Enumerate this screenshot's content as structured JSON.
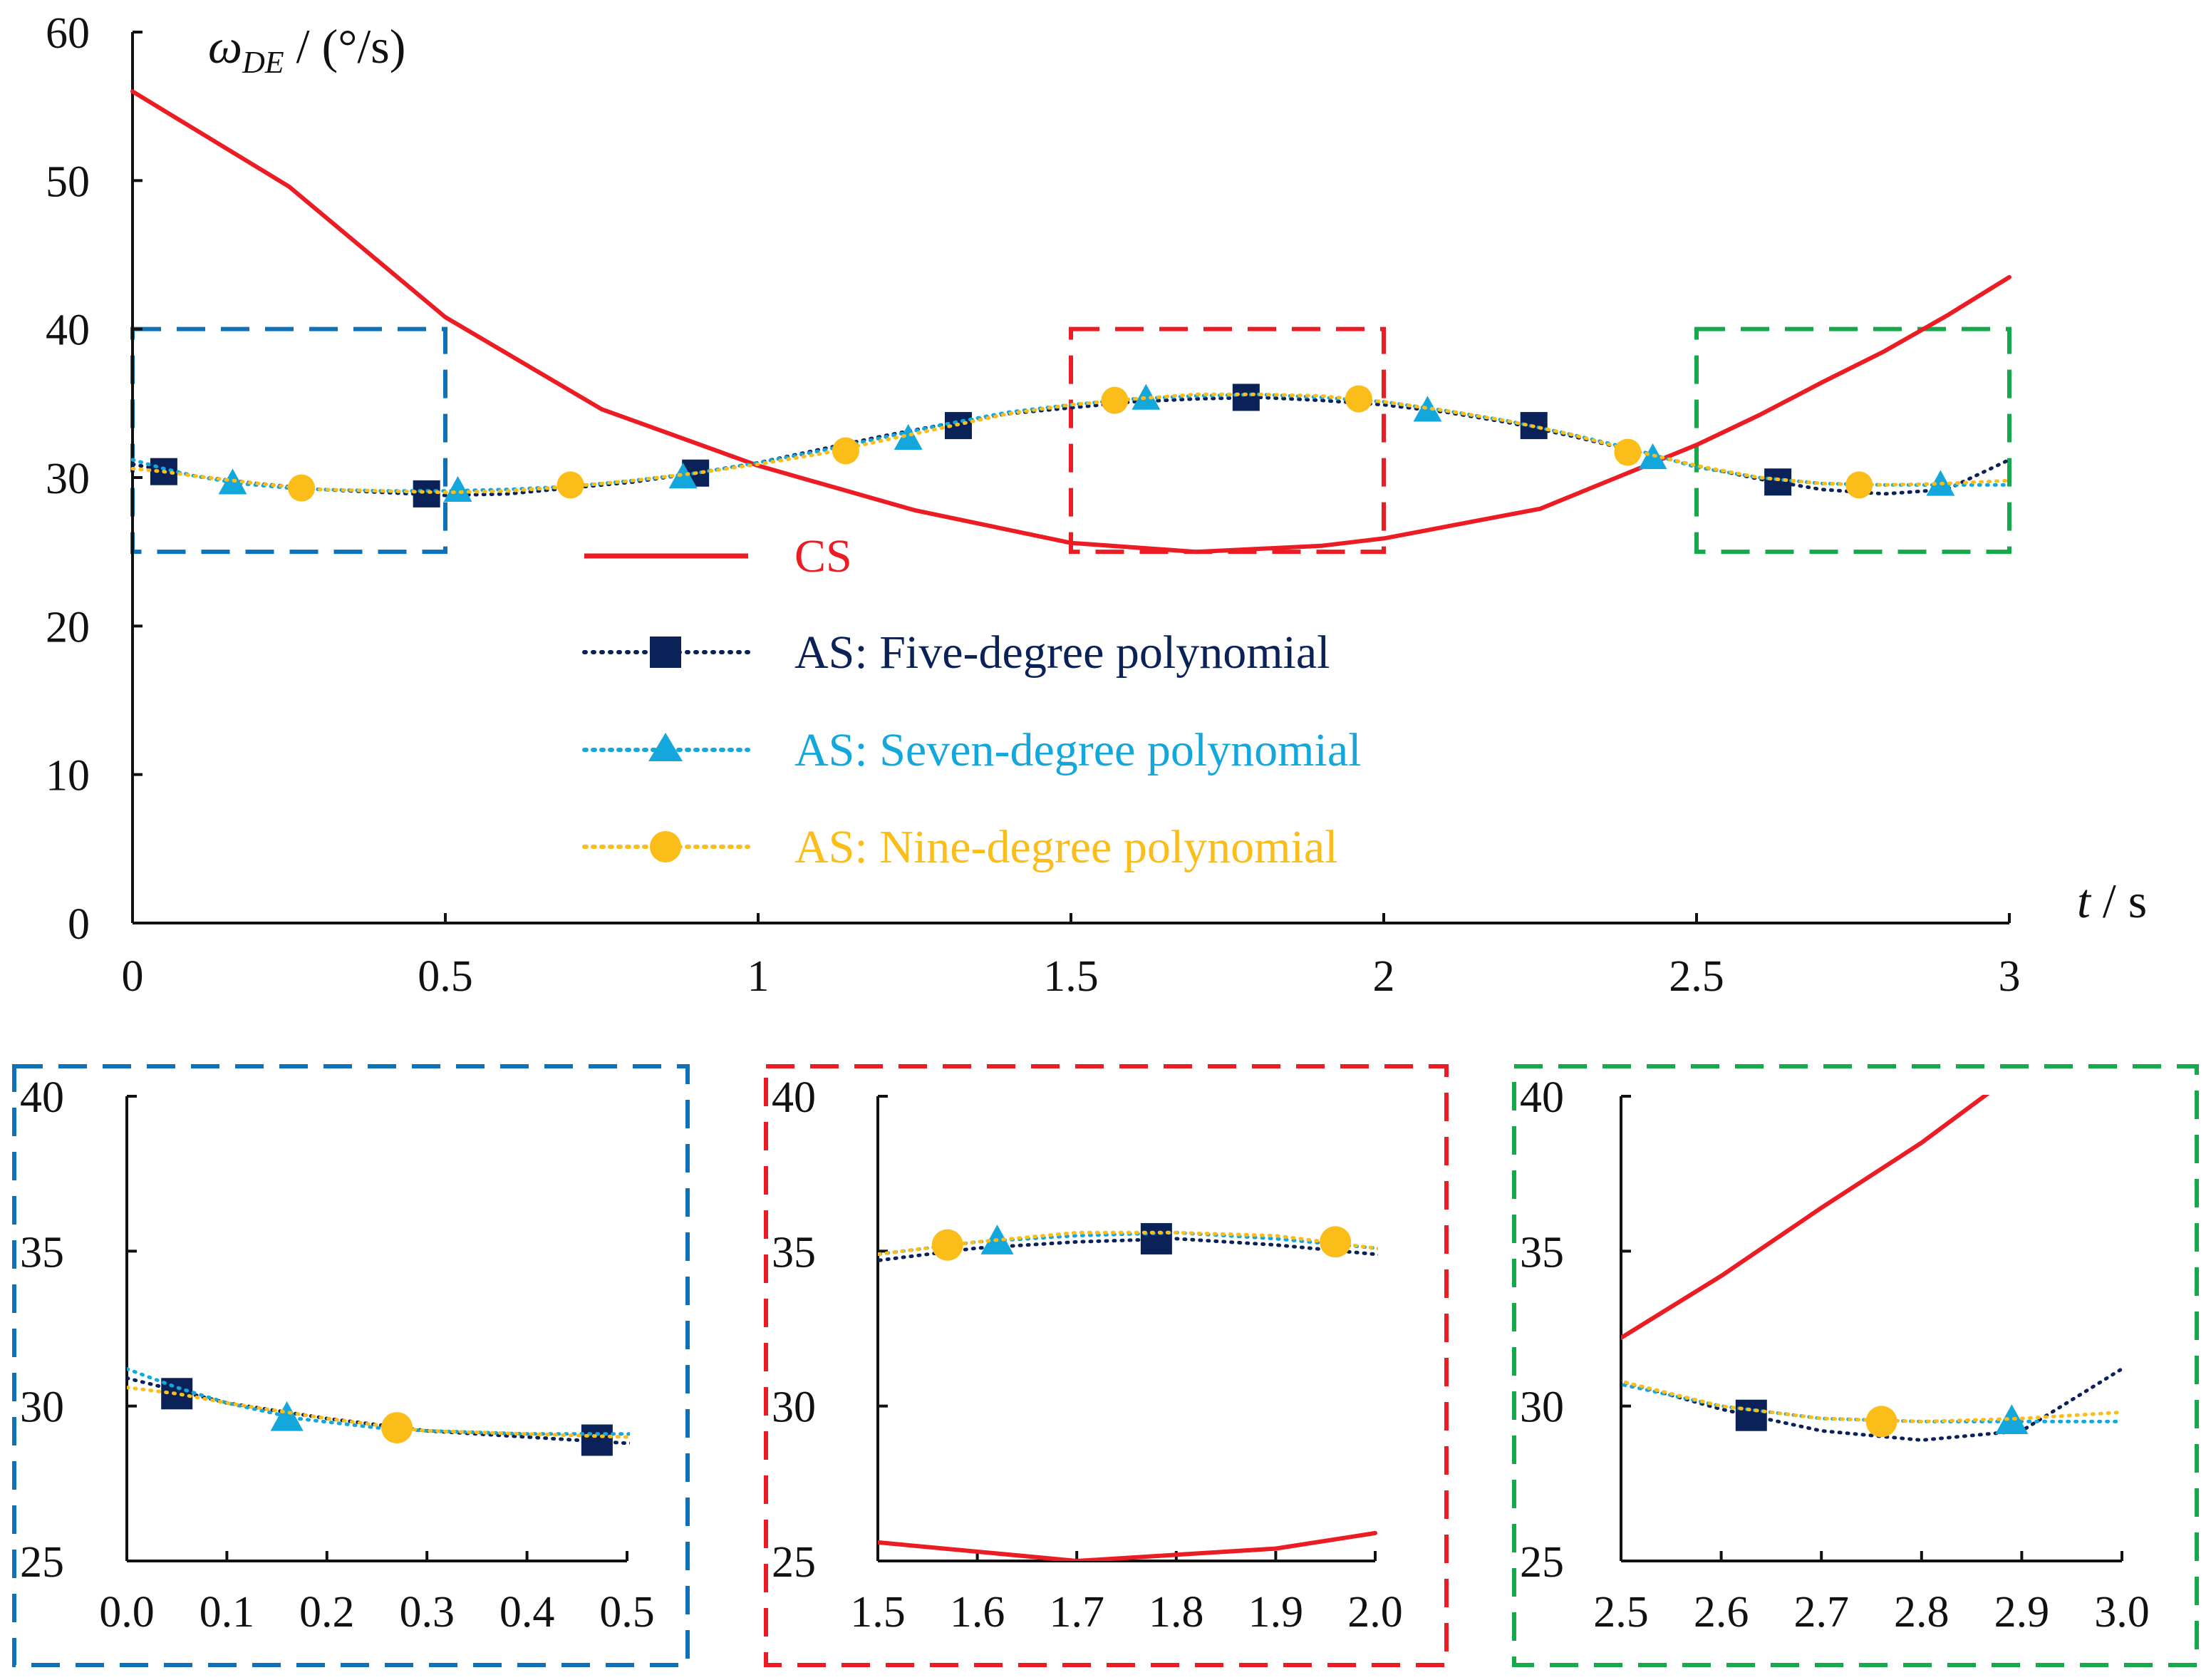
{
  "colors": {
    "cs": "#ec1c24",
    "five": "#0b2258",
    "seven": "#13a7dc",
    "nine": "#fbbd1a",
    "box_blue": "#0f72b8",
    "box_red": "#ec1c24",
    "box_green": "#16a94b",
    "axis": "#111111"
  },
  "legend": {
    "cs": "CS",
    "five": "AS: Five-degree polynomial",
    "seven": "AS: Seven-degree polynomial",
    "nine": "AS: Nine-degree polynomial"
  },
  "chart_data": [
    {
      "type": "line",
      "panel": "main",
      "ylabel_symbol": "ω",
      "ylabel_subscript": "DE",
      "ylabel_unit": " / (°/s)",
      "xlabel_symbol": "t",
      "xlabel_unit": " / s",
      "xlim": [
        0,
        3
      ],
      "ylim": [
        0,
        60
      ],
      "xticks": [
        "0",
        "0.5",
        "1",
        "1.5",
        "2",
        "2.5",
        "3"
      ],
      "xtick_values": [
        0,
        0.5,
        1,
        1.5,
        2,
        2.5,
        3
      ],
      "yticks": [
        "0",
        "10",
        "20",
        "30",
        "40",
        "50",
        "60"
      ],
      "ytick_values": [
        0,
        10,
        20,
        30,
        40,
        50,
        60
      ],
      "zoom_boxes": [
        {
          "name": "blue",
          "x": [
            0,
            0.5
          ],
          "y": [
            25,
            40
          ]
        },
        {
          "name": "red",
          "x": [
            1.5,
            2.0
          ],
          "y": [
            25,
            40
          ]
        },
        {
          "name": "green",
          "x": [
            2.5,
            3.0
          ],
          "y": [
            25,
            40
          ]
        }
      ]
    },
    {
      "type": "line",
      "panel": "zoom-1",
      "xlim": [
        0,
        0.5
      ],
      "ylim": [
        25,
        40
      ],
      "xticks": [
        "0.0",
        "0.1",
        "0.2",
        "0.3",
        "0.4",
        "0.5"
      ],
      "xtick_values": [
        0,
        0.1,
        0.2,
        0.3,
        0.4,
        0.5
      ],
      "yticks": [
        "25",
        "30",
        "35",
        "40"
      ],
      "ytick_values": [
        25,
        30,
        35,
        40
      ]
    },
    {
      "type": "line",
      "panel": "zoom-2",
      "xlim": [
        1.5,
        2.0
      ],
      "ylim": [
        25,
        40
      ],
      "xticks": [
        "1.5",
        "1.6",
        "1.7",
        "1.8",
        "1.9",
        "2.0"
      ],
      "xtick_values": [
        1.5,
        1.6,
        1.7,
        1.8,
        1.9,
        2.0
      ],
      "yticks": [
        "25",
        "30",
        "35",
        "40"
      ],
      "ytick_values": [
        25,
        30,
        35,
        40
      ]
    },
    {
      "type": "line",
      "panel": "zoom-3",
      "xlim": [
        2.5,
        3.0
      ],
      "ylim": [
        25,
        40
      ],
      "xticks": [
        "2.5",
        "2.6",
        "2.7",
        "2.8",
        "2.9",
        "3.0"
      ],
      "xtick_values": [
        2.5,
        2.6,
        2.7,
        2.8,
        2.9,
        3.0
      ],
      "yticks": [
        "25",
        "30",
        "35",
        "40"
      ],
      "ytick_values": [
        25,
        30,
        35,
        40
      ]
    }
  ],
  "series": [
    {
      "key": "cs",
      "name": "CS",
      "style": "solid",
      "marker": "none",
      "points": [
        [
          0,
          56.0
        ],
        [
          0.25,
          49.6
        ],
        [
          0.5,
          40.8
        ],
        [
          0.75,
          34.6
        ],
        [
          1.0,
          30.8
        ],
        [
          1.25,
          27.8
        ],
        [
          1.5,
          25.6
        ],
        [
          1.7,
          25.0
        ],
        [
          1.9,
          25.4
        ],
        [
          2.0,
          25.9
        ],
        [
          2.25,
          27.9
        ],
        [
          2.5,
          32.2
        ],
        [
          2.6,
          34.2
        ],
        [
          2.7,
          36.4
        ],
        [
          2.8,
          38.5
        ],
        [
          2.9,
          40.9
        ],
        [
          3.0,
          43.5
        ]
      ]
    },
    {
      "key": "five",
      "name": "AS: Five-degree polynomial",
      "style": "dotted",
      "marker": "square",
      "points": [
        [
          0,
          30.9
        ],
        [
          0.05,
          30.5
        ],
        [
          0.1,
          30.1
        ],
        [
          0.2,
          29.6
        ],
        [
          0.3,
          29.2
        ],
        [
          0.4,
          29.0
        ],
        [
          0.5,
          28.8
        ],
        [
          0.6,
          28.9
        ],
        [
          0.7,
          29.3
        ],
        [
          0.8,
          29.7
        ],
        [
          0.9,
          30.3
        ],
        [
          1.0,
          31.0
        ],
        [
          1.1,
          31.9
        ],
        [
          1.2,
          32.8
        ],
        [
          1.3,
          33.6
        ],
        [
          1.4,
          34.3
        ],
        [
          1.5,
          34.7
        ],
        [
          1.6,
          35.1
        ],
        [
          1.7,
          35.3
        ],
        [
          1.8,
          35.4
        ],
        [
          1.9,
          35.2
        ],
        [
          2.0,
          34.9
        ],
        [
          2.1,
          34.4
        ],
        [
          2.2,
          33.7
        ],
        [
          2.3,
          32.8
        ],
        [
          2.4,
          31.8
        ],
        [
          2.5,
          30.8
        ],
        [
          2.6,
          29.9
        ],
        [
          2.7,
          29.2
        ],
        [
          2.8,
          28.9
        ],
        [
          2.9,
          29.2
        ],
        [
          3.0,
          31.2
        ]
      ],
      "markers": [
        [
          0.05,
          30.4
        ],
        [
          0.47,
          28.9
        ],
        [
          0.9,
          30.3
        ],
        [
          1.32,
          33.5
        ],
        [
          1.78,
          35.4
        ],
        [
          2.24,
          33.5
        ],
        [
          2.63,
          29.7
        ]
      ]
    },
    {
      "key": "seven",
      "name": "AS: Seven-degree polynomial",
      "style": "dotted",
      "marker": "triangle",
      "points": [
        [
          0,
          31.2
        ],
        [
          0.05,
          30.6
        ],
        [
          0.1,
          30.1
        ],
        [
          0.17,
          29.6
        ],
        [
          0.25,
          29.3
        ],
        [
          0.3,
          29.2
        ],
        [
          0.4,
          29.1
        ],
        [
          0.5,
          29.1
        ],
        [
          0.6,
          29.2
        ],
        [
          0.7,
          29.4
        ],
        [
          0.8,
          29.8
        ],
        [
          0.9,
          30.3
        ],
        [
          1.0,
          31.0
        ],
        [
          1.1,
          31.8
        ],
        [
          1.2,
          32.7
        ],
        [
          1.3,
          33.6
        ],
        [
          1.4,
          34.4
        ],
        [
          1.5,
          34.9
        ],
        [
          1.6,
          35.3
        ],
        [
          1.7,
          35.5
        ],
        [
          1.8,
          35.6
        ],
        [
          1.9,
          35.4
        ],
        [
          2.0,
          35.1
        ],
        [
          2.1,
          34.5
        ],
        [
          2.2,
          33.8
        ],
        [
          2.3,
          32.9
        ],
        [
          2.4,
          31.9
        ],
        [
          2.5,
          30.7
        ],
        [
          2.6,
          30.0
        ],
        [
          2.7,
          29.6
        ],
        [
          2.8,
          29.5
        ],
        [
          2.9,
          29.5
        ],
        [
          3.0,
          29.5
        ]
      ],
      "markers": [
        [
          0.16,
          29.6
        ],
        [
          0.52,
          29.1
        ],
        [
          0.88,
          30.0
        ],
        [
          1.24,
          32.6
        ],
        [
          1.62,
          35.3
        ],
        [
          2.07,
          34.5
        ],
        [
          2.43,
          31.3
        ],
        [
          2.89,
          29.5
        ]
      ]
    },
    {
      "key": "nine",
      "name": "AS: Nine-degree polynomial",
      "style": "dotted",
      "marker": "circle",
      "points": [
        [
          0,
          30.6
        ],
        [
          0.05,
          30.4
        ],
        [
          0.1,
          30.1
        ],
        [
          0.2,
          29.6
        ],
        [
          0.27,
          29.3
        ],
        [
          0.3,
          29.2
        ],
        [
          0.4,
          29.1
        ],
        [
          0.5,
          29.0
        ],
        [
          0.6,
          29.1
        ],
        [
          0.7,
          29.4
        ],
        [
          0.8,
          29.8
        ],
        [
          0.9,
          30.3
        ],
        [
          1.0,
          30.9
        ],
        [
          1.1,
          31.6
        ],
        [
          1.2,
          32.5
        ],
        [
          1.3,
          33.4
        ],
        [
          1.4,
          34.3
        ],
        [
          1.5,
          34.9
        ],
        [
          1.6,
          35.3
        ],
        [
          1.7,
          35.6
        ],
        [
          1.8,
          35.6
        ],
        [
          1.9,
          35.5
        ],
        [
          2.0,
          35.1
        ],
        [
          2.1,
          34.5
        ],
        [
          2.2,
          33.8
        ],
        [
          2.3,
          32.9
        ],
        [
          2.4,
          31.8
        ],
        [
          2.5,
          30.8
        ],
        [
          2.6,
          30.0
        ],
        [
          2.7,
          29.6
        ],
        [
          2.8,
          29.5
        ],
        [
          2.9,
          29.6
        ],
        [
          3.0,
          29.8
        ]
      ],
      "markers": [
        [
          0.27,
          29.3
        ],
        [
          0.7,
          29.5
        ],
        [
          1.14,
          31.8
        ],
        [
          1.57,
          35.2
        ],
        [
          1.96,
          35.3
        ],
        [
          2.39,
          31.7
        ],
        [
          2.76,
          29.5
        ]
      ]
    }
  ]
}
